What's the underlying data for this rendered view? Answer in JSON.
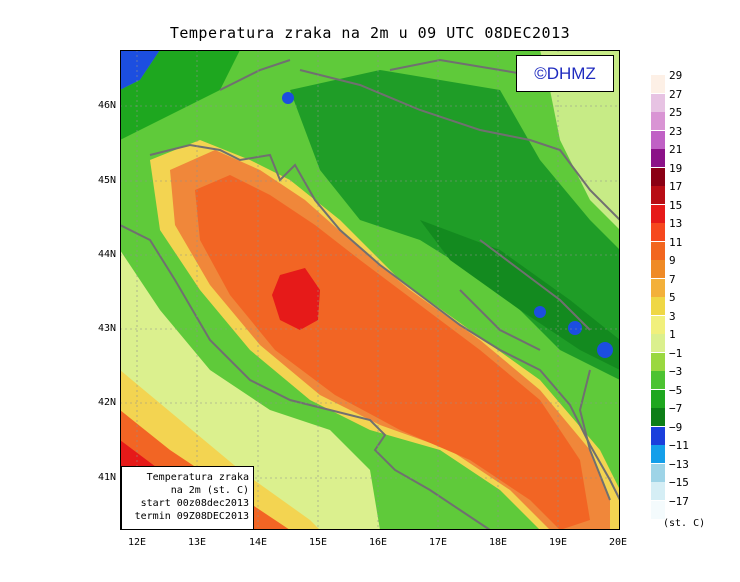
{
  "title": "Temperatura zraka na 2m u 09 UTC 08DEC2013",
  "logo": "©DHMZ",
  "info": {
    "line1": "Temperatura zraka",
    "line2": "na 2m (st. C)",
    "line3": "start 00z08dec2013",
    "line4": "termin 09Z08DEC2013"
  },
  "lat_labels": [
    "46N",
    "45N",
    "44N",
    "43N",
    "42N",
    "41N"
  ],
  "lon_labels": [
    "12E",
    "13E",
    "14E",
    "15E",
    "16E",
    "17E",
    "18E",
    "19E",
    "20E"
  ],
  "legend": {
    "unit": "(st. C)",
    "levels": [
      "29",
      "27",
      "25",
      "23",
      "21",
      "19",
      "17",
      "15",
      "13",
      "11",
      "9",
      "7",
      "5",
      "3",
      "1",
      "−1",
      "−3",
      "−5",
      "−7",
      "−9",
      "−11",
      "−13",
      "−15",
      "−17"
    ],
    "colors": [
      "#fdf0e6",
      "#e7c3e3",
      "#d994d4",
      "#c061c5",
      "#8b1288",
      "#8a0014",
      "#b80d15",
      "#e61a19",
      "#f6481e",
      "#f2661f",
      "#ef8a25",
      "#f3b03a",
      "#efd745",
      "#f1f07c",
      "#dbf08e",
      "#9ad840",
      "#4cc331",
      "#1ea71f",
      "#0d7e17",
      "#1b3fdc",
      "#149fea",
      "#9ed4e7",
      "#d5eef5",
      "#f4fbfd"
    ]
  },
  "palette": {
    "sea_hot": "#f26524",
    "sea_warm": "#f0873a",
    "coast_yellow": "#f3d451",
    "land_green": "#3ec13a",
    "land_dark": "#1f9d27",
    "cold_blue": "#1c4ee0",
    "border": "#707070"
  }
}
